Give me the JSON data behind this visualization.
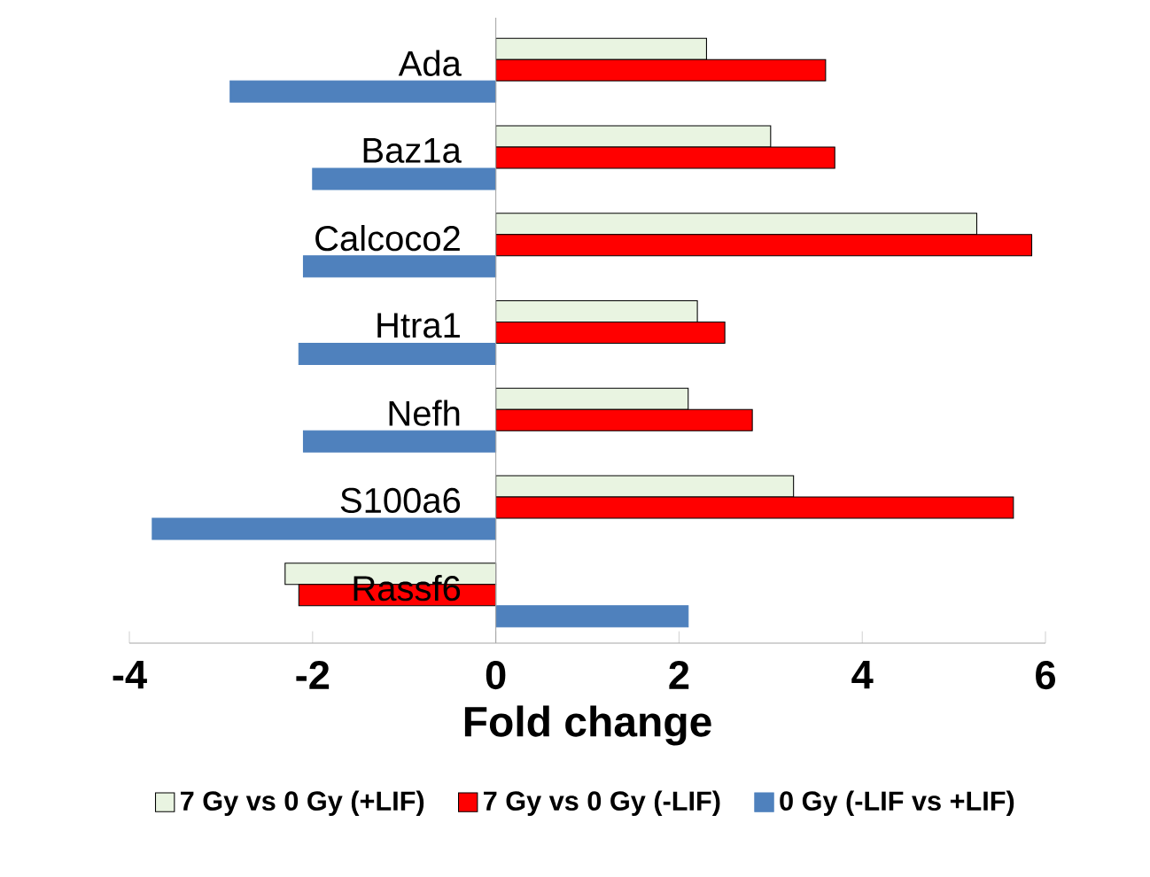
{
  "chart_data": {
    "type": "bar",
    "orientation": "horizontal",
    "xlabel": "Fold change",
    "categories": [
      "Ada",
      "Baz1a",
      "Calcoco2",
      "Htra1",
      "Nefh",
      "S100a6",
      "Rassf6"
    ],
    "series": [
      {
        "name": "7 Gy vs 0 Gy (+LIF)",
        "color": "#e9f4e1",
        "values": [
          2.3,
          3.0,
          5.25,
          2.2,
          2.1,
          3.25,
          -2.3
        ]
      },
      {
        "name": "7 Gy vs 0 Gy (-LIF)",
        "color": "#ff0000",
        "values": [
          3.6,
          3.7,
          5.85,
          2.5,
          2.8,
          5.65,
          -2.15
        ]
      },
      {
        "name": "0 Gy (-LIF vs +LIF)",
        "color": "#4f81bd",
        "values": [
          -2.9,
          -2.0,
          -2.1,
          -2.15,
          -2.1,
          -3.75,
          2.1
        ]
      }
    ],
    "xlim": [
      -4,
      6
    ],
    "xticks": [
      -4,
      -2,
      0,
      2,
      4,
      6
    ],
    "legend": "bottom"
  }
}
